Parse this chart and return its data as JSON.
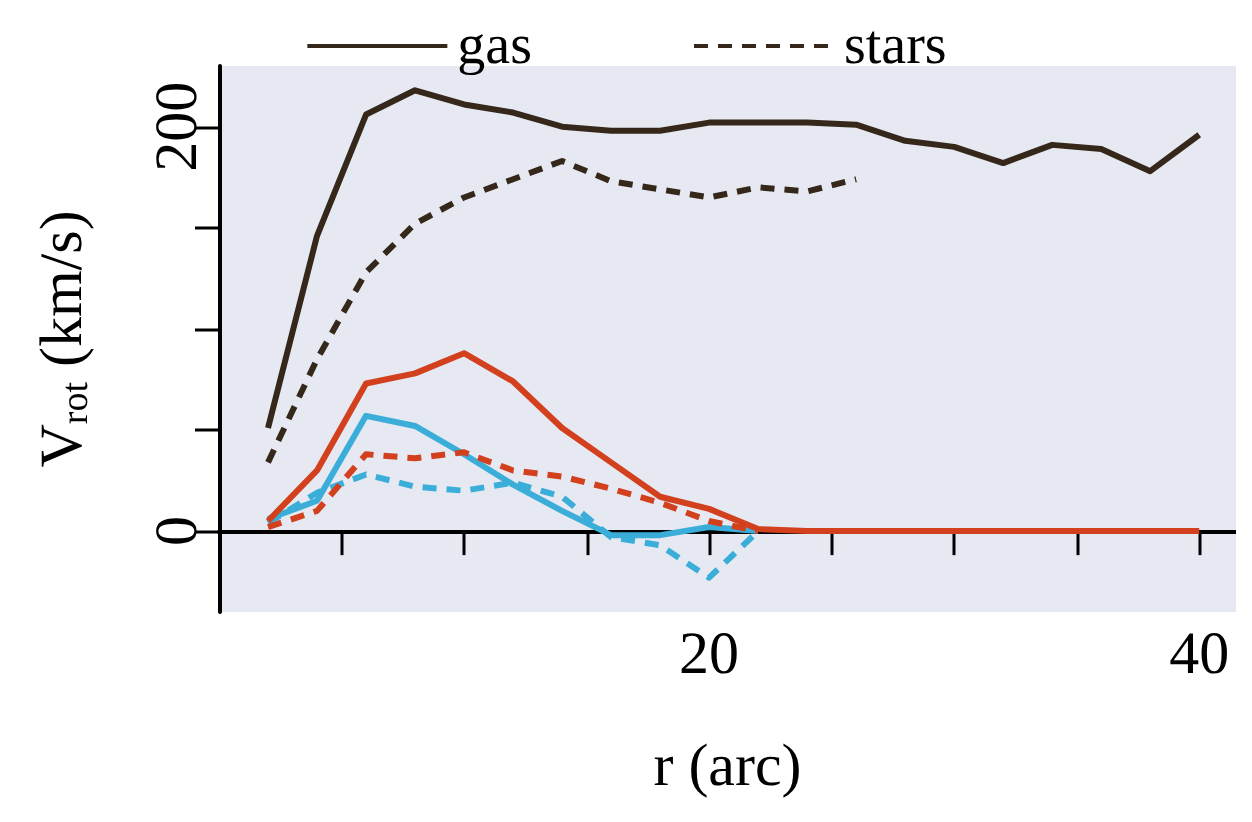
{
  "chart_data": {
    "type": "line",
    "xlabel": "r (arc)",
    "ylabel": "V$_{rot}$ (km/s)",
    "xlim": [
      0,
      41.5
    ],
    "ylim": [
      -40,
      230
    ],
    "xticks": [
      {
        "value": 5,
        "label": null
      },
      {
        "value": 10,
        "label": null
      },
      {
        "value": 15,
        "label": null
      },
      20,
      {
        "value": 25,
        "label": null
      },
      {
        "value": 30,
        "label": null
      },
      {
        "value": 35,
        "label": null
      },
      40
    ],
    "yticks": [
      0,
      {
        "value": 50,
        "label": null
      },
      {
        "value": 100,
        "label": null
      },
      {
        "value": 150,
        "label": null
      },
      200
    ],
    "legend": "top",
    "series": [
      {
        "name": "gas",
        "color": "#35281a",
        "line_style": "solid",
        "x": [
          2,
          4,
          6,
          8,
          10,
          12,
          14,
          16,
          18,
          20,
          22,
          24,
          26,
          28,
          30,
          32,
          34,
          36,
          38,
          40
        ],
        "values": [
          51,
          146,
          206,
          218,
          211,
          207,
          200,
          198,
          198,
          202,
          202,
          202,
          201,
          193,
          190,
          182,
          191,
          189,
          178,
          196
        ]
      },
      {
        "name": "stars",
        "color": "#35281a",
        "line_style": "dashed",
        "x": [
          2,
          4,
          6,
          8,
          10,
          12,
          14,
          16,
          18,
          20,
          22,
          24,
          26
        ],
        "values": [
          34,
          85,
          128,
          152,
          165,
          174,
          183,
          173,
          169,
          165,
          170,
          168,
          174
        ]
      },
      {
        "color": "#3aaed8",
        "line_style": "solid",
        "x": [
          2,
          4,
          6,
          8,
          10,
          12,
          14,
          16,
          18,
          20,
          22
        ],
        "values": [
          6,
          15,
          57,
          52,
          38,
          23,
          10,
          -2,
          -2,
          2,
          0
        ]
      },
      {
        "color": "#3aaed8",
        "line_style": "dashed",
        "x": [
          2,
          4,
          6,
          8,
          10,
          12,
          14,
          16,
          18,
          20,
          22
        ],
        "values": [
          4,
          19,
          28,
          22,
          20,
          24,
          17,
          -3,
          -7,
          -23,
          0
        ]
      },
      {
        "color": "#d2401e",
        "line_style": "solid",
        "x": [
          2,
          4,
          6,
          8,
          10,
          12,
          14,
          16,
          18,
          20,
          22,
          24,
          26,
          28,
          30,
          32,
          34,
          36,
          38,
          40
        ],
        "values": [
          5,
          30,
          73,
          78,
          88,
          74,
          51,
          34,
          17,
          11,
          1,
          0,
          0,
          0,
          0,
          0,
          0,
          0,
          0,
          0
        ]
      },
      {
        "color": "#d2401e",
        "line_style": "dashed",
        "x": [
          2,
          4,
          6,
          8,
          10,
          12,
          14,
          16,
          18,
          20,
          22
        ],
        "values": [
          2,
          10,
          38,
          36,
          39,
          30,
          27,
          21,
          14,
          5,
          0
        ]
      }
    ]
  }
}
